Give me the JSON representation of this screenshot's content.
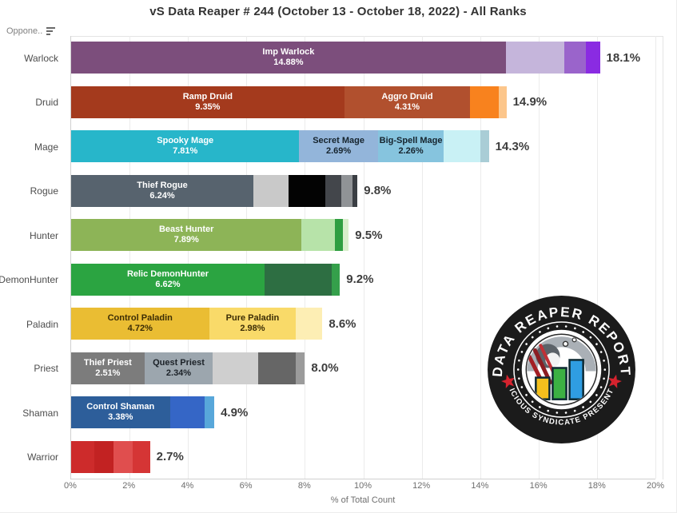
{
  "title": "vS Data Reaper # 244 (October 13 - October 18, 2022) - All Ranks",
  "field_header": {
    "label": "Oppone..",
    "icon": "sort-icon"
  },
  "axis": {
    "xlabel": "% of Total Count",
    "ticks": [
      "0%",
      "2%",
      "4%",
      "6%",
      "8%",
      "10%",
      "12%",
      "14%",
      "16%",
      "18%",
      "20%"
    ],
    "max": 20
  },
  "chart_data": {
    "type": "bar",
    "orientation": "horizontal",
    "stacked": true,
    "title": "vS Data Reaper # 244 (October 13 - October 18, 2022) - All Ranks",
    "xlabel": "% of Total Count",
    "xlim": [
      0,
      20
    ],
    "grid": true,
    "categories": [
      "Warlock",
      "Druid",
      "Mage",
      "Rogue",
      "Hunter",
      "DemonHunter",
      "Paladin",
      "Priest",
      "Shaman",
      "Warrior"
    ],
    "rows": [
      {
        "name": "Warlock",
        "total_label": "18.1%",
        "segments": [
          {
            "label": "Imp Warlock",
            "pct_label": "14.88%",
            "value": 14.88,
            "color": "#7c4e7c",
            "text_color": "#ffffff"
          },
          {
            "value": 2.0,
            "color": "#c5b5db"
          },
          {
            "value": 0.75,
            "color": "#9a64cb"
          },
          {
            "value": 0.47,
            "color": "#8a2be2"
          }
        ]
      },
      {
        "name": "Druid",
        "total_label": "14.9%",
        "segments": [
          {
            "label": "Ramp Druid",
            "pct_label": "9.35%",
            "value": 9.35,
            "color": "#a43a1d",
            "text_color": "#ffffff"
          },
          {
            "label": "Aggro Druid",
            "pct_label": "4.31%",
            "value": 4.31,
            "color": "#b1502e",
            "text_color": "#ffffff"
          },
          {
            "value": 0.97,
            "color": "#f8821e"
          },
          {
            "value": 0.27,
            "color": "#fcc68b"
          }
        ]
      },
      {
        "name": "Mage",
        "total_label": "14.3%",
        "segments": [
          {
            "label": "Spooky Mage",
            "pct_label": "7.81%",
            "value": 7.81,
            "color": "#27b6ca",
            "text_color": "#ffffff"
          },
          {
            "label": "Secret Mage",
            "pct_label": "2.69%",
            "value": 2.69,
            "color": "#93b5da",
            "text_color": "#16242e"
          },
          {
            "label": "Big-Spell Mage",
            "pct_label": "2.26%",
            "value": 2.26,
            "color": "#86c4de",
            "text_color": "#16242e"
          },
          {
            "value": 1.26,
            "color": "#c9f1f5"
          },
          {
            "value": 0.28,
            "color": "#a9cdd6"
          }
        ]
      },
      {
        "name": "Rogue",
        "total_label": "9.8%",
        "segments": [
          {
            "label": "Thief Rogue",
            "pct_label": "6.24%",
            "value": 6.24,
            "color": "#57636e",
            "text_color": "#ffffff"
          },
          {
            "value": 1.2,
            "color": "#c9c9c9"
          },
          {
            "value": 1.25,
            "color": "#030303"
          },
          {
            "value": 0.55,
            "color": "#43464b"
          },
          {
            "value": 0.4,
            "color": "#909396"
          },
          {
            "value": 0.16,
            "color": "#3a3e43"
          }
        ]
      },
      {
        "name": "Hunter",
        "total_label": "9.5%",
        "segments": [
          {
            "label": "Beast Hunter",
            "pct_label": "7.89%",
            "value": 7.89,
            "color": "#8db457",
            "text_color": "#ffffff"
          },
          {
            "value": 1.13,
            "color": "#b7e3a9"
          },
          {
            "value": 0.27,
            "color": "#2f9e41"
          },
          {
            "value": 0.21,
            "color": "#d8eecb"
          }
        ]
      },
      {
        "name": "DemonHunter",
        "total_label": "9.2%",
        "segments": [
          {
            "label": "Relic DemonHunter",
            "pct_label": "6.62%",
            "value": 6.62,
            "color": "#2ba441",
            "text_color": "#ffffff"
          },
          {
            "value": 2.3,
            "color": "#2d6e42"
          },
          {
            "value": 0.28,
            "color": "#35a04b"
          }
        ]
      },
      {
        "name": "Paladin",
        "total_label": "8.6%",
        "segments": [
          {
            "label": "Control Paladin",
            "pct_label": "4.72%",
            "value": 4.72,
            "color": "#eabd33",
            "text_color": "#3c2d05"
          },
          {
            "label": "Pure Paladin",
            "pct_label": "2.98%",
            "value": 2.98,
            "color": "#f9da69",
            "text_color": "#3c2d05"
          },
          {
            "value": 0.9,
            "color": "#fdeeb4"
          }
        ]
      },
      {
        "name": "Priest",
        "total_label": "8.0%",
        "segments": [
          {
            "label": "Thief Priest",
            "pct_label": "2.51%",
            "value": 2.51,
            "color": "#7c7c7c",
            "text_color": "#ffffff"
          },
          {
            "label": "Quest Priest",
            "pct_label": "2.34%",
            "value": 2.34,
            "color": "#9ca6ae",
            "text_color": "#1c2228"
          },
          {
            "value": 1.55,
            "color": "#cfcfcf"
          },
          {
            "value": 1.3,
            "color": "#666666"
          },
          {
            "value": 0.3,
            "color": "#9b9b9b"
          }
        ]
      },
      {
        "name": "Shaman",
        "total_label": "4.9%",
        "segments": [
          {
            "label": "Control Shaman",
            "pct_label": "3.38%",
            "value": 3.38,
            "color": "#2d5e9a",
            "text_color": "#ffffff"
          },
          {
            "value": 1.2,
            "color": "#3566c6"
          },
          {
            "value": 0.32,
            "color": "#58a7da"
          }
        ]
      },
      {
        "name": "Warrior",
        "total_label": "2.7%",
        "segments": [
          {
            "value": 0.8,
            "color": "#cd2b2b"
          },
          {
            "value": 0.65,
            "color": "#c22222"
          },
          {
            "value": 0.65,
            "color": "#e04e4e"
          },
          {
            "value": 0.6,
            "color": "#d53535"
          }
        ]
      }
    ]
  },
  "stamp": {
    "top_text": "DATA REAPER REPORT",
    "bottom_text": "VICIOUS SYNDICATE PRESENTS",
    "ring_color": "#1b1b1b",
    "star_color": "#d5232e",
    "bar_colors": [
      "#f3c01d",
      "#3cb043",
      "#2f9de2"
    ],
    "scythe_color": "#a31f24"
  }
}
